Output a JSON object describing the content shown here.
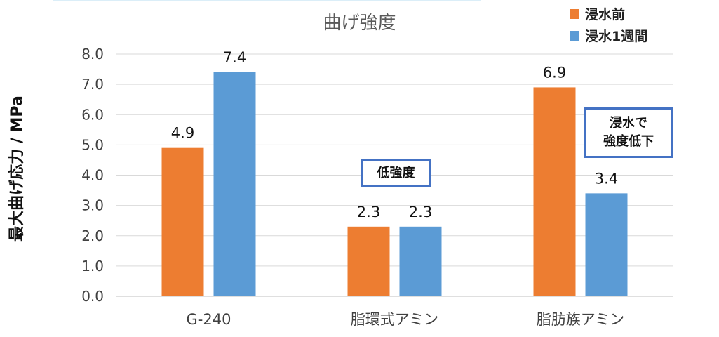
{
  "chart_data": {
    "type": "bar",
    "title": "曲げ強度",
    "ylabel": "最大曲げ応力 / MPa",
    "xlabel": "",
    "categories": [
      "G-240",
      "脂環式アミン",
      "脂肪族アミン"
    ],
    "series": [
      {
        "name": "浸水前",
        "color": "#ed7d31",
        "values": [
          4.9,
          2.3,
          6.9
        ]
      },
      {
        "name": "浸水1週間",
        "color": "#5b9bd5",
        "values": [
          7.4,
          2.3,
          3.4
        ]
      }
    ],
    "ylim": [
      0,
      8
    ],
    "yticks": [
      "0.0",
      "1.0",
      "2.0",
      "3.0",
      "4.0",
      "5.0",
      "6.0",
      "7.0",
      "8.0"
    ],
    "grid": true,
    "legend_position": "top-right"
  },
  "annotations": {
    "low_strength": "低強度",
    "water_drop_line1": "浸水で",
    "water_drop_line2": "強度低下"
  }
}
